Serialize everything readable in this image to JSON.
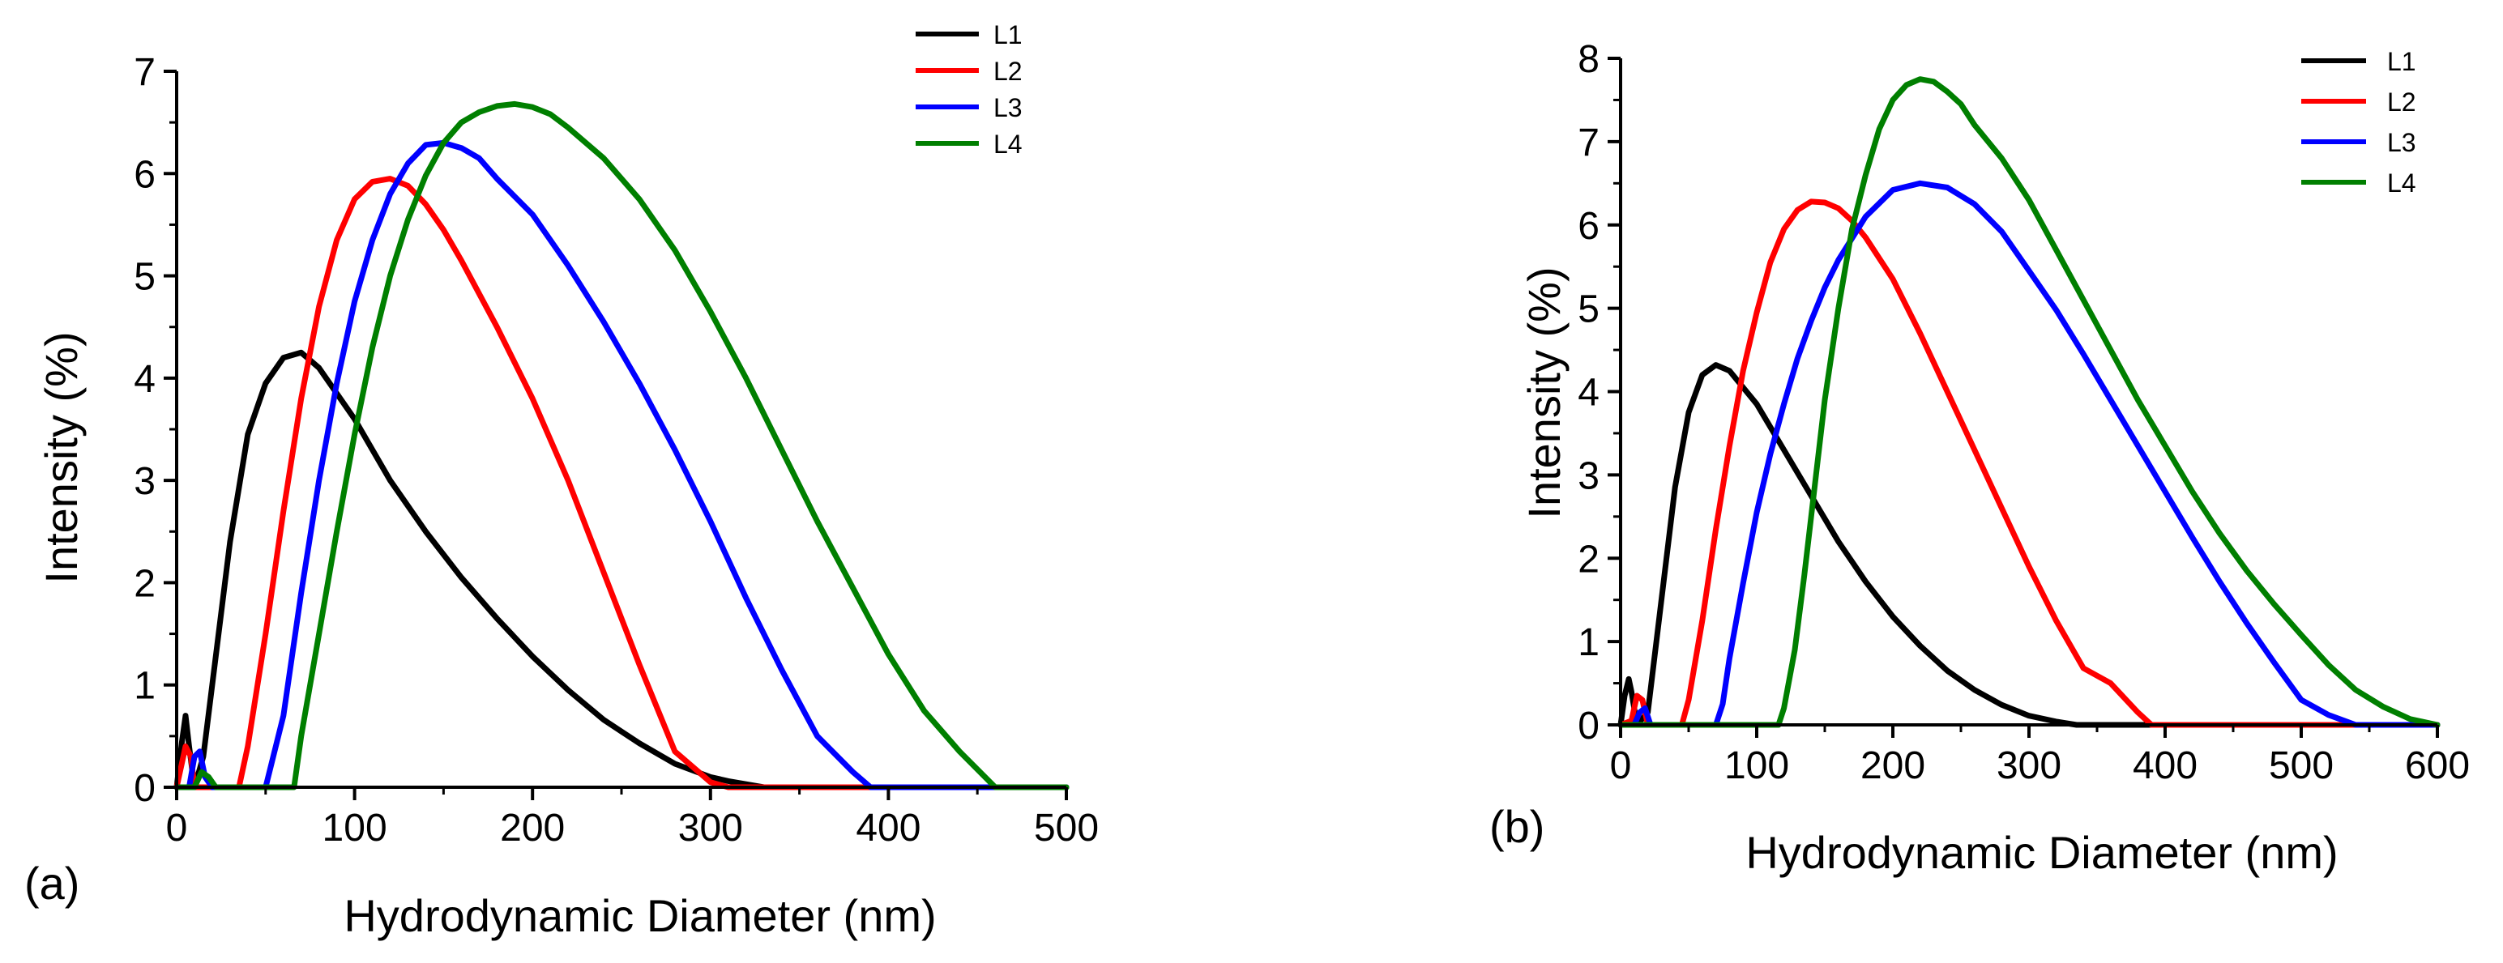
{
  "chart_data": [
    {
      "panel_label": "(a)",
      "type": "line",
      "xlabel": "Hydrodynamic Diameter (nm)",
      "ylabel": "Intensity (%)",
      "xlim": [
        0,
        500
      ],
      "ylim": [
        0,
        7
      ],
      "xticks": [
        0,
        100,
        200,
        300,
        400,
        500
      ],
      "yticks": [
        0,
        1,
        2,
        3,
        4,
        5,
        6,
        7
      ],
      "legend": "top-right",
      "series": [
        {
          "name": "L1",
          "color": "#000000",
          "x": [
            0,
            3,
            5,
            7,
            10,
            15,
            20,
            30,
            40,
            50,
            60,
            70,
            80,
            100,
            120,
            140,
            160,
            180,
            200,
            220,
            240,
            260,
            280,
            300,
            310,
            320,
            330,
            400,
            500
          ],
          "y": [
            0,
            0.45,
            0.7,
            0.4,
            0,
            0.3,
            1.0,
            2.4,
            3.45,
            3.95,
            4.2,
            4.25,
            4.1,
            3.6,
            3.0,
            2.5,
            2.05,
            1.65,
            1.28,
            0.95,
            0.66,
            0.43,
            0.23,
            0.1,
            0.06,
            0.03,
            0,
            0,
            0
          ]
        },
        {
          "name": "L2",
          "color": "#ff0000",
          "x": [
            0,
            5,
            8,
            10,
            15,
            20,
            35,
            40,
            50,
            60,
            70,
            80,
            90,
            100,
            110,
            120,
            130,
            140,
            150,
            160,
            180,
            200,
            220,
            240,
            260,
            280,
            300,
            310,
            320,
            350,
            400,
            500
          ],
          "y": [
            0,
            0.4,
            0.3,
            0,
            0,
            0,
            0,
            0.4,
            1.5,
            2.7,
            3.8,
            4.7,
            5.35,
            5.75,
            5.92,
            5.95,
            5.88,
            5.7,
            5.45,
            5.15,
            4.5,
            3.8,
            3.0,
            2.1,
            1.2,
            0.35,
            0.05,
            0,
            0,
            0,
            0,
            0
          ]
        },
        {
          "name": "L3",
          "color": "#0000ff",
          "x": [
            0,
            7,
            10,
            13,
            16,
            20,
            50,
            60,
            70,
            80,
            90,
            100,
            110,
            120,
            130,
            140,
            150,
            160,
            170,
            180,
            200,
            220,
            240,
            260,
            280,
            300,
            320,
            340,
            360,
            380,
            390,
            400,
            500
          ],
          "y": [
            0,
            0,
            0.3,
            0.35,
            0.1,
            0,
            0,
            0.7,
            1.9,
            3.0,
            3.95,
            4.75,
            5.35,
            5.8,
            6.1,
            6.28,
            6.3,
            6.25,
            6.15,
            5.95,
            5.6,
            5.1,
            4.55,
            3.95,
            3.3,
            2.6,
            1.85,
            1.15,
            0.5,
            0.15,
            0,
            0,
            0
          ]
        },
        {
          "name": "L4",
          "color": "#007f00",
          "x": [
            0,
            10,
            14,
            18,
            22,
            30,
            66,
            70,
            80,
            90,
            100,
            110,
            120,
            130,
            140,
            150,
            160,
            170,
            180,
            190,
            200,
            210,
            220,
            240,
            260,
            280,
            300,
            320,
            340,
            360,
            380,
            400,
            420,
            440,
            460,
            500
          ],
          "y": [
            0,
            0,
            0.15,
            0.1,
            0,
            0,
            0,
            0.5,
            1.5,
            2.5,
            3.45,
            4.3,
            5.0,
            5.55,
            5.98,
            6.3,
            6.5,
            6.6,
            6.66,
            6.68,
            6.65,
            6.58,
            6.45,
            6.15,
            5.75,
            5.25,
            4.65,
            4.0,
            3.3,
            2.6,
            1.95,
            1.3,
            0.75,
            0.35,
            0,
            0
          ]
        }
      ]
    },
    {
      "panel_label": "(b)",
      "type": "line",
      "xlabel": "Hydrodynamic Diameter (nm)",
      "ylabel": "Intensity (%)",
      "xlim": [
        0,
        600
      ],
      "ylim": [
        0,
        8
      ],
      "xticks": [
        0,
        100,
        200,
        300,
        400,
        500,
        600
      ],
      "yticks": [
        0,
        1,
        2,
        3,
        4,
        5,
        6,
        7,
        8
      ],
      "legend": "top-right",
      "series": [
        {
          "name": "L1",
          "color": "#000000",
          "x": [
            0,
            3,
            6,
            8,
            12,
            20,
            30,
            40,
            50,
            60,
            70,
            80,
            100,
            120,
            140,
            160,
            180,
            200,
            220,
            240,
            260,
            280,
            300,
            320,
            335,
            400,
            600
          ],
          "y": [
            0,
            0.35,
            0.55,
            0.4,
            0,
            0.15,
            1.5,
            2.85,
            3.75,
            4.2,
            4.32,
            4.25,
            3.85,
            3.3,
            2.75,
            2.2,
            1.72,
            1.3,
            0.95,
            0.65,
            0.42,
            0.24,
            0.11,
            0.04,
            0,
            0,
            0
          ]
        },
        {
          "name": "L2",
          "color": "#ff0000",
          "x": [
            0,
            8,
            12,
            16,
            20,
            45,
            50,
            60,
            70,
            80,
            90,
            100,
            110,
            120,
            130,
            140,
            150,
            160,
            170,
            180,
            200,
            220,
            240,
            260,
            280,
            300,
            320,
            340,
            360,
            380,
            390,
            450,
            600
          ],
          "y": [
            0,
            0.05,
            0.35,
            0.3,
            0,
            0,
            0.3,
            1.25,
            2.35,
            3.35,
            4.25,
            4.95,
            5.55,
            5.95,
            6.18,
            6.28,
            6.27,
            6.2,
            6.05,
            5.85,
            5.35,
            4.7,
            4.0,
            3.3,
            2.6,
            1.9,
            1.25,
            0.68,
            0.5,
            0.15,
            0,
            0,
            0
          ]
        },
        {
          "name": "L3",
          "color": "#0000ff",
          "x": [
            0,
            10,
            14,
            18,
            22,
            70,
            75,
            80,
            90,
            100,
            110,
            120,
            130,
            140,
            150,
            160,
            180,
            200,
            220,
            240,
            260,
            280,
            300,
            320,
            340,
            360,
            380,
            400,
            420,
            440,
            460,
            480,
            500,
            520,
            540,
            600
          ],
          "y": [
            0,
            0,
            0.15,
            0.2,
            0,
            0,
            0.25,
            0.8,
            1.7,
            2.55,
            3.25,
            3.85,
            4.4,
            4.85,
            5.25,
            5.58,
            6.1,
            6.42,
            6.5,
            6.45,
            6.25,
            5.92,
            5.45,
            4.98,
            4.45,
            3.9,
            3.35,
            2.8,
            2.25,
            1.72,
            1.22,
            0.75,
            0.3,
            0.12,
            0,
            0
          ]
        },
        {
          "name": "L4",
          "color": "#007f00",
          "x": [
            0,
            116,
            120,
            128,
            135,
            140,
            145,
            150,
            160,
            170,
            180,
            190,
            200,
            210,
            220,
            230,
            240,
            250,
            260,
            280,
            300,
            320,
            340,
            360,
            380,
            400,
            420,
            440,
            460,
            480,
            500,
            520,
            540,
            560,
            580,
            600
          ],
          "y": [
            0,
            0,
            0.2,
            0.9,
            1.8,
            2.5,
            3.2,
            3.9,
            5.0,
            5.95,
            6.6,
            7.15,
            7.5,
            7.68,
            7.75,
            7.72,
            7.6,
            7.45,
            7.2,
            6.8,
            6.3,
            5.7,
            5.1,
            4.5,
            3.9,
            3.35,
            2.8,
            2.3,
            1.85,
            1.45,
            1.08,
            0.72,
            0.42,
            0.22,
            0.07,
            0
          ]
        }
      ]
    }
  ]
}
